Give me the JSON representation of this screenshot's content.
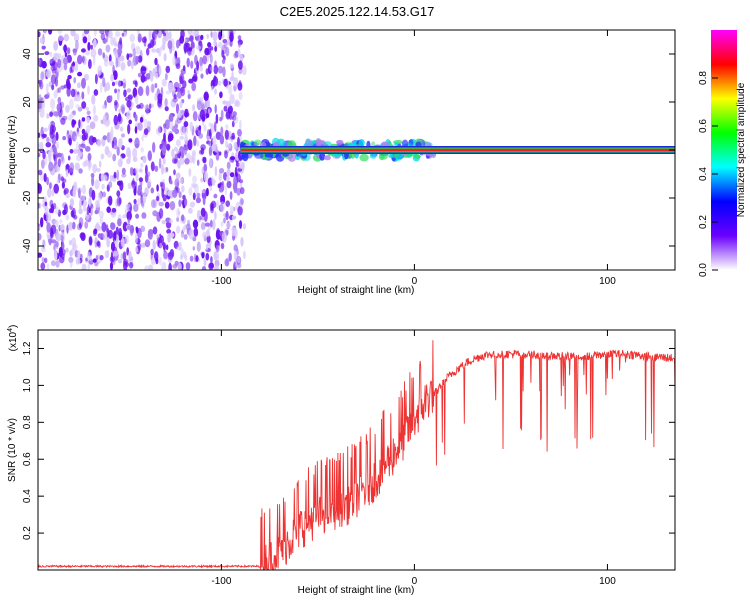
{
  "title": "C2E5.2025.122.14.53.G17",
  "chart_data": [
    {
      "type": "heatmap",
      "name": "spectrogram",
      "xlabel": "Height of straight line (km)",
      "ylabel": "Frequency (Hz)",
      "xlim": [
        -195,
        135
      ],
      "ylim": [
        -50,
        50
      ],
      "xticks": [
        -100,
        0,
        100
      ],
      "yticks": [
        -40,
        -20,
        0,
        20,
        40
      ],
      "noise_region_x": [
        -195,
        -88
      ],
      "tone_frequency_hz": 0,
      "tone_start_x": -90,
      "colorbar": {
        "label": "Normalized spectral amplitude",
        "range": [
          0.0,
          1.0
        ],
        "ticks": [
          "0.0",
          "0.2",
          "0.4",
          "0.6",
          "0.8"
        ],
        "colors": [
          "#ffffff",
          "#6a00ff",
          "#0000ff",
          "#00ffff",
          "#00ff00",
          "#ffff00",
          "#ff0000",
          "#ff00ff"
        ]
      }
    },
    {
      "type": "line",
      "name": "snr",
      "xlabel": "Height of straight line (km)",
      "ylabel": "SNR (10 * v/v)",
      "scale_label": "(x10",
      "scale_exponent": "4",
      "xlim": [
        -195,
        135
      ],
      "ylim": [
        0,
        1.3
      ],
      "xticks": [
        -100,
        0,
        100
      ],
      "yticks": [
        "0.2",
        "0.4",
        "0.6",
        "0.8",
        "1.0",
        "1.2"
      ],
      "color": "#ee3333",
      "series": [
        {
          "name": "SNR",
          "x": [
            -195,
            -80,
            -75,
            -70,
            -65,
            -60,
            -55,
            -50,
            -45,
            -40,
            -35,
            -30,
            -25,
            -20,
            -15,
            -10,
            -5,
            0,
            5,
            10,
            15,
            20,
            25,
            30,
            35,
            40,
            50,
            60,
            70,
            80,
            90,
            100,
            110,
            120,
            130,
            135
          ],
          "y": [
            0.02,
            0.02,
            0.04,
            0.08,
            0.14,
            0.2,
            0.24,
            0.28,
            0.3,
            0.32,
            0.34,
            0.38,
            0.42,
            0.48,
            0.55,
            0.62,
            0.7,
            0.8,
            0.88,
            0.95,
            1.02,
            1.07,
            1.11,
            1.14,
            1.16,
            1.17,
            1.17,
            1.17,
            1.16,
            1.16,
            1.16,
            1.17,
            1.17,
            1.16,
            1.15,
            1.15
          ]
        }
      ]
    }
  ]
}
